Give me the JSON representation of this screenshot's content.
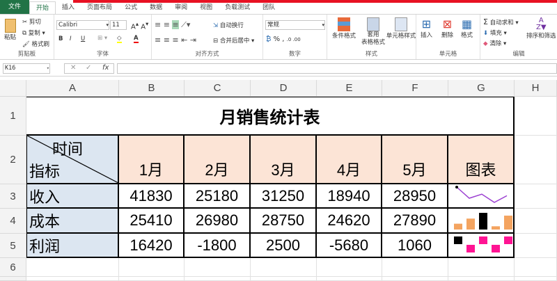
{
  "ribbon": {
    "tabs": [
      "文件",
      "开始",
      "插入",
      "页面布局",
      "公式",
      "数据",
      "审阅",
      "视图",
      "负载测试",
      "团队"
    ],
    "active_tab": "开始",
    "clipboard": {
      "paste": "粘贴",
      "cut": "剪切",
      "copy": "复制",
      "format_painter": "格式刷",
      "label": "剪贴板"
    },
    "font": {
      "name": "Calibri",
      "size": "11",
      "bold": "B",
      "italic": "I",
      "underline": "U",
      "label": "字体"
    },
    "alignment": {
      "wrap": "自动换行",
      "merge": "合并后居中",
      "label": "对齐方式"
    },
    "number": {
      "format": "常规",
      "percent": "%",
      "comma": ",",
      "label": "数字"
    },
    "styles": {
      "conditional": "条件格式",
      "table": "套用\n表格格式",
      "cell_styles": "单元格样式",
      "label": "样式"
    },
    "cells": {
      "insert": "插入",
      "delete": "删除",
      "format": "格式",
      "label": "单元格"
    },
    "editing": {
      "autosum": "自动求和",
      "fill": "填充",
      "clear": "清除",
      "sort": "排序和筛选",
      "label": "编辑"
    }
  },
  "formula_bar": {
    "name_box": "K16",
    "fx": "fx",
    "value": ""
  },
  "columns": [
    "A",
    "B",
    "C",
    "D",
    "E",
    "F",
    "G",
    "H"
  ],
  "rows": [
    "1",
    "2",
    "3",
    "4",
    "5",
    "6"
  ],
  "sheet": {
    "title": "月销售统计表",
    "corner_top": "时间",
    "corner_bottom": "指标",
    "months": [
      "1月",
      "2月",
      "3月",
      "4月",
      "5月"
    ],
    "chart_header": "图表",
    "data": [
      {
        "label": "收入",
        "values": [
          41830,
          25180,
          31250,
          18940,
          28950
        ],
        "sparkline": "line"
      },
      {
        "label": "成本",
        "values": [
          25410,
          26980,
          28750,
          24620,
          27890
        ],
        "sparkline": "column"
      },
      {
        "label": "利润",
        "values": [
          16420,
          -1800,
          2500,
          -5680,
          1060
        ],
        "sparkline": "win-loss"
      }
    ]
  },
  "colors": {
    "file_tab": "#217346",
    "header_fill_a": "#dce6f1",
    "header_fill_months": "#fce4d6",
    "line_sparkline": "#9b3fd1",
    "column_sparkline": "#f4a460",
    "column_high": "#000000",
    "winloss": "#ff1493",
    "winloss_first": "#000000"
  }
}
